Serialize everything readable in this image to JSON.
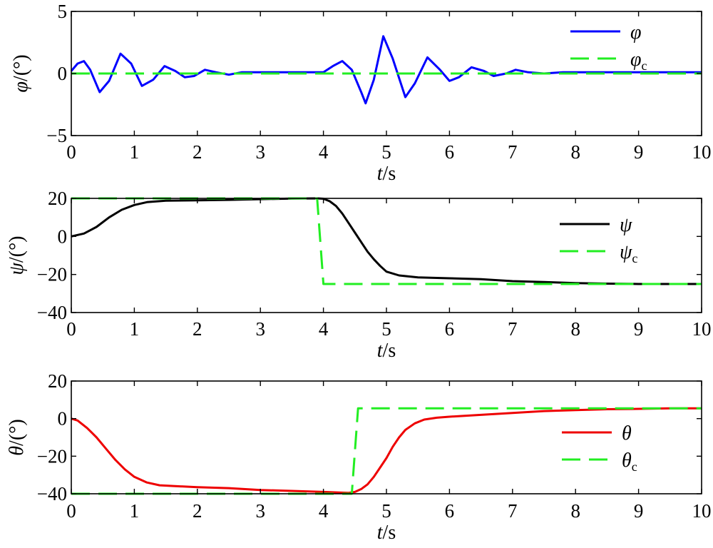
{
  "chart_data": [
    {
      "type": "line",
      "xlabel": {
        "var": "t",
        "unit": "/s"
      },
      "ylabel": {
        "var": "φ",
        "unit": "/(°)"
      },
      "xlim": [
        0,
        10
      ],
      "ylim": [
        -5,
        5
      ],
      "xticks": [
        "0",
        "1",
        "2",
        "3",
        "4",
        "5",
        "6",
        "7",
        "8",
        "9",
        "10"
      ],
      "yticks": [
        {
          "value": -5,
          "label": "−5"
        },
        {
          "value": 0,
          "label": "0"
        },
        {
          "value": 5,
          "label": "5"
        }
      ],
      "legend": "top-right",
      "series": [
        {
          "name": "φ",
          "color": "#0000ff",
          "style": "solid",
          "x": [
            0,
            0.1,
            0.2,
            0.3,
            0.45,
            0.6,
            0.78,
            0.95,
            1.12,
            1.3,
            1.48,
            1.65,
            1.8,
            1.95,
            2.12,
            2.3,
            2.5,
            2.7,
            3.0,
            3.5,
            4.0,
            4.15,
            4.3,
            4.45,
            4.6,
            4.67,
            4.8,
            4.95,
            5.1,
            5.3,
            5.45,
            5.65,
            5.85,
            6.0,
            6.15,
            6.35,
            6.55,
            6.7,
            6.9,
            7.05,
            7.25,
            7.5,
            7.8,
            8.2,
            8.6,
            9.0,
            9.5,
            10.0
          ],
          "y": [
            0.2,
            0.8,
            1.0,
            0.3,
            -1.5,
            -0.6,
            1.6,
            0.8,
            -1.0,
            -0.5,
            0.6,
            0.2,
            -0.3,
            -0.2,
            0.3,
            0.1,
            -0.1,
            0.1,
            0.1,
            0.1,
            0.1,
            0.6,
            1.0,
            0.3,
            -1.5,
            -2.4,
            -0.5,
            3.0,
            1.2,
            -1.9,
            -0.8,
            1.3,
            0.3,
            -0.6,
            -0.3,
            0.5,
            0.2,
            -0.2,
            0.0,
            0.3,
            0.1,
            0.0,
            0.1,
            0.1,
            0.1,
            0.1,
            0.1,
            0.1
          ]
        },
        {
          "name": "φ",
          "subscript": "c",
          "color": "#22ee22",
          "style": "dashed",
          "x": [
            0,
            10
          ],
          "y": [
            0,
            0
          ]
        }
      ]
    },
    {
      "type": "line",
      "xlabel": {
        "var": "t",
        "unit": "/s"
      },
      "ylabel": {
        "var": "ψ",
        "unit": "/(°)"
      },
      "xlim": [
        0,
        10
      ],
      "ylim": [
        -40,
        20
      ],
      "xticks": [
        "0",
        "1",
        "2",
        "3",
        "4",
        "5",
        "6",
        "7",
        "8",
        "9",
        "10"
      ],
      "yticks": [
        {
          "value": -40,
          "label": "−40"
        },
        {
          "value": -20,
          "label": "−20"
        },
        {
          "value": 0,
          "label": "0"
        },
        {
          "value": 20,
          "label": "20"
        }
      ],
      "legend": "right",
      "series": [
        {
          "name": "ψ",
          "color": "#000000",
          "style": "solid",
          "x": [
            0,
            0.2,
            0.4,
            0.6,
            0.8,
            1.0,
            1.2,
            1.5,
            2.0,
            2.5,
            3.0,
            3.5,
            3.9,
            4.0,
            4.1,
            4.2,
            4.3,
            4.4,
            4.5,
            4.6,
            4.7,
            4.8,
            4.9,
            5.0,
            5.2,
            5.5,
            6.0,
            6.5,
            7.0,
            7.5,
            8.0,
            8.5,
            9.0,
            9.5,
            10.0
          ],
          "y": [
            0,
            1.5,
            5,
            10,
            14,
            16.5,
            18,
            18.8,
            19,
            19.2,
            19.6,
            19.9,
            20,
            19.8,
            18.5,
            16,
            12,
            7,
            2,
            -3,
            -8,
            -12,
            -15.5,
            -18.5,
            -20.5,
            -21.5,
            -22,
            -22.5,
            -23.5,
            -24,
            -24.5,
            -24.8,
            -25,
            -25,
            -25
          ]
        },
        {
          "name": "ψ",
          "subscript": "c",
          "color": "#22ee22",
          "style": "dashed",
          "x": [
            0,
            3.9,
            4.0,
            10
          ],
          "y": [
            20,
            20,
            -25,
            -25
          ]
        }
      ]
    },
    {
      "type": "line",
      "xlabel": {
        "var": "t",
        "unit": "/s"
      },
      "ylabel": {
        "var": "θ",
        "unit": "/(°)"
      },
      "xlim": [
        0,
        10
      ],
      "ylim": [
        -40,
        20
      ],
      "xticks": [
        "0",
        "1",
        "2",
        "3",
        "4",
        "5",
        "6",
        "7",
        "8",
        "9",
        "10"
      ],
      "yticks": [
        {
          "value": -40,
          "label": "−40"
        },
        {
          "value": -20,
          "label": "−20"
        },
        {
          "value": 0,
          "label": "0"
        },
        {
          "value": 20,
          "label": "20"
        }
      ],
      "legend": "right",
      "series": [
        {
          "name": "θ",
          "color": "#ee0000",
          "style": "solid",
          "x": [
            0,
            0.1,
            0.25,
            0.4,
            0.55,
            0.7,
            0.85,
            1.0,
            1.2,
            1.4,
            1.7,
            2.0,
            2.5,
            3.0,
            3.5,
            4.0,
            4.4,
            4.5,
            4.6,
            4.7,
            4.8,
            4.9,
            5.0,
            5.1,
            5.2,
            5.3,
            5.45,
            5.6,
            5.8,
            6.0,
            6.5,
            7.0,
            7.5,
            8.0,
            8.5,
            9.0,
            9.5,
            10.0
          ],
          "y": [
            0,
            -1,
            -5,
            -10,
            -16,
            -22,
            -27,
            -31,
            -34,
            -35.5,
            -36,
            -36.5,
            -37,
            -38,
            -38.5,
            -39,
            -39.5,
            -39,
            -37.5,
            -35,
            -31,
            -26,
            -21,
            -15,
            -10,
            -6,
            -2.5,
            -0.5,
            0.5,
            1,
            2,
            3,
            4,
            4.5,
            5,
            5.2,
            5.5,
            5.5
          ]
        },
        {
          "name": "θ",
          "subscript": "c",
          "color": "#22ee22",
          "style": "dashed",
          "x": [
            0,
            4.45,
            4.55,
            10
          ],
          "y": [
            -40,
            -40,
            5.5,
            5.5
          ]
        }
      ]
    }
  ]
}
